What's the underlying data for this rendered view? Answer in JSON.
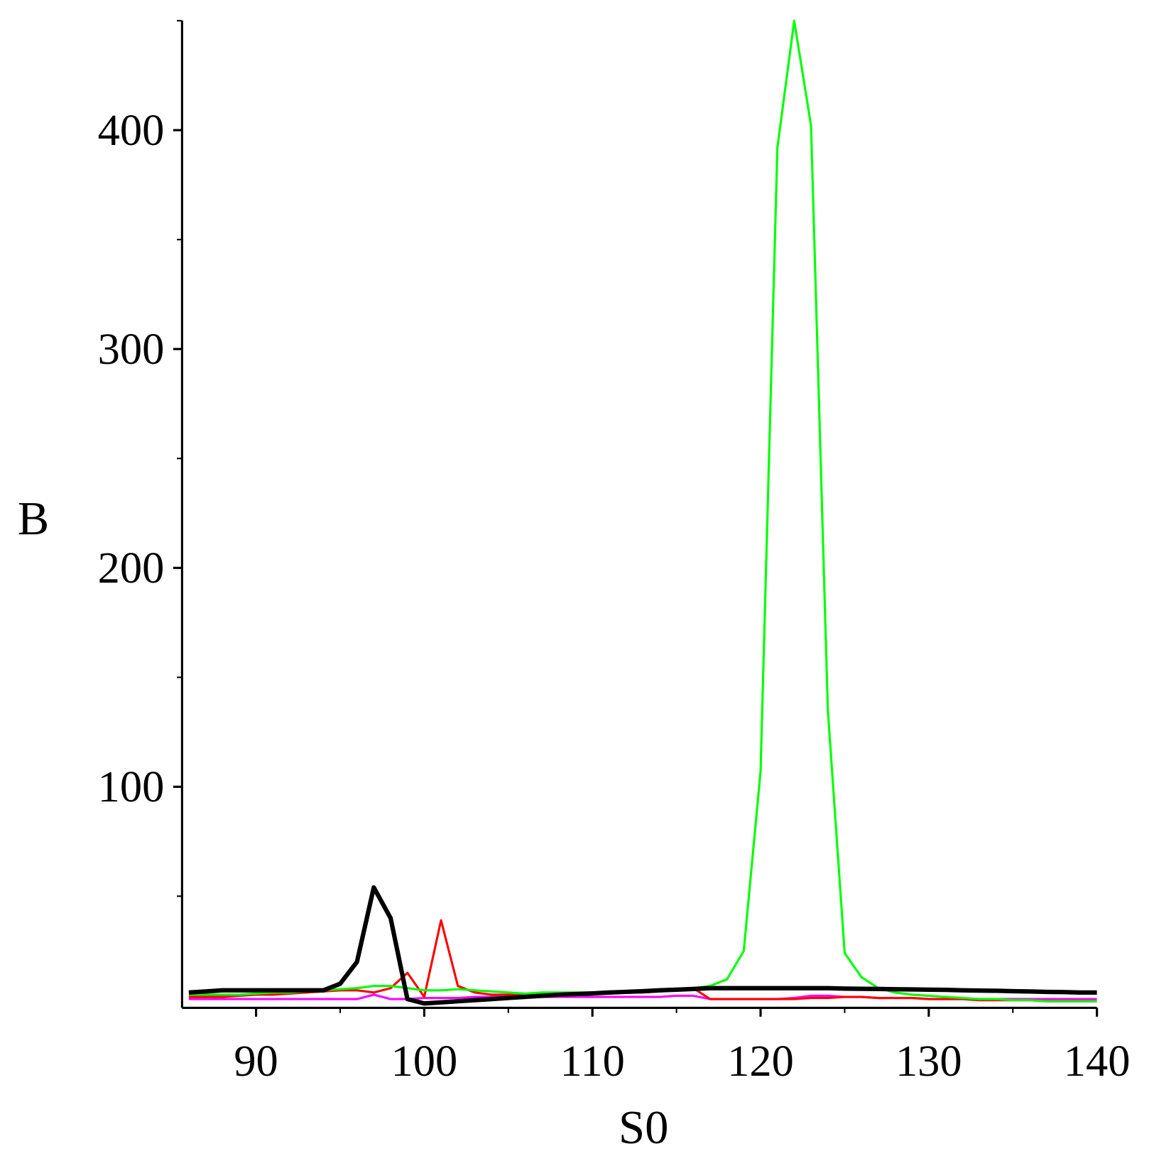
{
  "chart_data": {
    "type": "line",
    "xlabel": "S0",
    "ylabel": "B",
    "xlim": [
      85.6,
      140
    ],
    "ylim": [
      -1,
      450
    ],
    "xticks": [
      90,
      100,
      110,
      120,
      130,
      140
    ],
    "xminorticks": [
      95,
      105,
      115,
      125,
      135
    ],
    "yticks": [
      100,
      200,
      300,
      400
    ],
    "yminorticks": [
      50,
      150,
      250,
      350,
      450
    ],
    "x": [
      86,
      87,
      88,
      89,
      90,
      91,
      92,
      93,
      94,
      95,
      96,
      97,
      98,
      99,
      100,
      101,
      102,
      103,
      104,
      105,
      106,
      107,
      108,
      109,
      110,
      111,
      112,
      113,
      114,
      115,
      116,
      117,
      118,
      119,
      120,
      121,
      122,
      123,
      124,
      125,
      126,
      127,
      128,
      129,
      130,
      131,
      132,
      133,
      134,
      135,
      136,
      137,
      138,
      139,
      140
    ],
    "series": [
      {
        "name": "magenta",
        "color": "#ff00ff",
        "width": 3,
        "values": [
          3,
          3,
          3,
          3,
          3,
          3,
          3,
          3,
          3,
          3,
          3,
          5,
          3,
          3,
          3.5,
          3.5,
          3.5,
          4,
          4,
          4,
          4,
          4,
          4,
          4,
          4,
          4,
          4,
          4,
          4,
          4.5,
          4.5,
          3,
          3,
          3,
          3,
          3,
          3.5,
          4.5,
          4.5,
          4,
          4,
          3.5,
          3.5,
          3.5,
          3,
          3,
          3,
          3,
          3,
          3,
          3,
          3,
          3,
          3,
          3
        ]
      },
      {
        "name": "red",
        "color": "#ff0000",
        "width": 3,
        "values": [
          4,
          4,
          4,
          4.5,
          5,
          5,
          5.5,
          6,
          6.5,
          7,
          7,
          6,
          8,
          15,
          4,
          39,
          9,
          6,
          5,
          5,
          5,
          5,
          5,
          5,
          5.5,
          5.5,
          6,
          6,
          6.5,
          7,
          8,
          3,
          3,
          3,
          3,
          3,
          3,
          3.5,
          3.5,
          4,
          4,
          3.5,
          3.5,
          3.5,
          3,
          3,
          3,
          2.5,
          2.5,
          2.5,
          2.5,
          2,
          2,
          2,
          2
        ]
      },
      {
        "name": "green",
        "color": "#00ff00",
        "width": 3,
        "values": [
          5,
          5,
          5,
          5,
          5.5,
          6,
          6,
          6.5,
          7,
          7.5,
          8,
          9,
          9,
          8,
          7,
          7,
          7.5,
          7,
          6.5,
          6,
          5.5,
          6,
          6,
          6,
          6,
          6.5,
          6.5,
          7,
          7,
          7.5,
          8,
          9,
          12,
          25,
          107,
          392,
          450,
          402,
          135,
          24,
          13,
          8,
          6,
          5,
          4.5,
          4,
          3.5,
          3,
          3,
          2.5,
          2.5,
          2,
          2,
          2,
          2
        ]
      },
      {
        "name": "black",
        "color": "#000000",
        "width": 6,
        "values": [
          6,
          6.5,
          7,
          7,
          7,
          7,
          7,
          7,
          7,
          10,
          20,
          54,
          40,
          3,
          1,
          1.5,
          2,
          2.5,
          3,
          3.5,
          4,
          4.5,
          5,
          5.3,
          5.6,
          6,
          6.3,
          6.6,
          7,
          7.3,
          7.6,
          8,
          8,
          8,
          8,
          8,
          8,
          8,
          8,
          7.8,
          7.7,
          7.6,
          7.5,
          7.4,
          7.3,
          7.2,
          7,
          6.9,
          6.8,
          6.6,
          6.5,
          6.3,
          6.2,
          6,
          6
        ]
      }
    ]
  }
}
